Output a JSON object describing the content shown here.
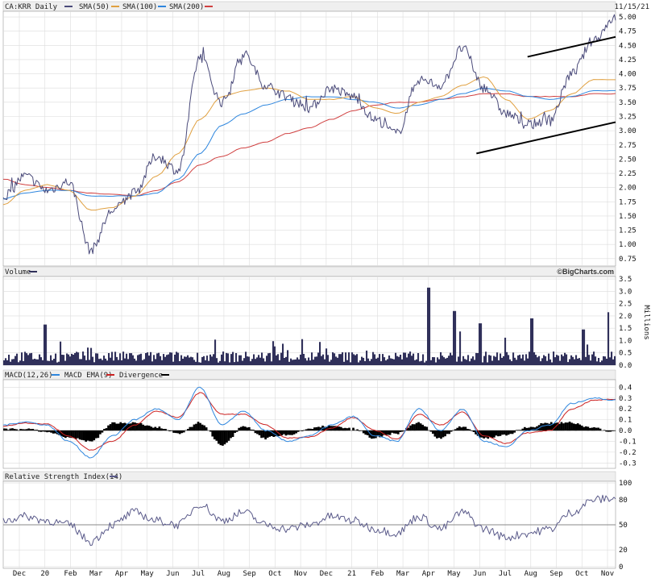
{
  "colors": {
    "price": "#4a4a7a",
    "sma50": "#e0a040",
    "sma100": "#2e86de",
    "sma200": "#d04040",
    "volume": "#30305a",
    "macd": "#2e86de",
    "macd_ema": "#cc2222",
    "divergence": "#000000",
    "rsi": "#5a5a8a",
    "grid": "#dcdcdc",
    "header_bg": "#efefef",
    "trendline": "#000000"
  },
  "header": {
    "ticker_label": "CA:KRR Daily",
    "sma50_label": "SMA(50)",
    "sma100_label": "SMA(100)",
    "sma200_label": "SMA(200)",
    "date": "11/15/21"
  },
  "volume_header": {
    "label": "Volume",
    "brand": "©BigCharts.com",
    "unit": "Millions"
  },
  "macd_header": {
    "macd_label": "MACD(12,26)",
    "ema_label": "MACD EMA(9)",
    "div_label": "Divergence"
  },
  "rsi_header": {
    "label": "Relative Strength Index(14)"
  },
  "x_labels": [
    "Dec",
    "20",
    "Feb",
    "Mar",
    "Apr",
    "May",
    "Jun",
    "Jul",
    "Aug",
    "Sep",
    "Oct",
    "Nov",
    "Dec",
    "21",
    "Feb",
    "Mar",
    "Apr",
    "May",
    "Jun",
    "Jul",
    "Aug",
    "Sep",
    "Oct",
    "Nov"
  ],
  "chart_data": [
    {
      "type": "line",
      "title": "CA:KRR Daily",
      "y_ticks": [
        0.75,
        1.0,
        1.25,
        1.5,
        1.75,
        2.0,
        2.25,
        2.5,
        2.75,
        3.0,
        3.25,
        3.5,
        3.75,
        4.0,
        4.25,
        4.5,
        4.75,
        5.0
      ],
      "ylim": [
        0.75,
        5.0
      ],
      "series": [
        {
          "name": "CA:KRR Daily",
          "x": [
            "Dec",
            "20",
            "Feb",
            "Mar",
            "Mar",
            "Apr",
            "May",
            "Jun",
            "Jul",
            "Aug",
            "Aug",
            "Sep",
            "Sep",
            "Oct",
            "Nov",
            "Dec",
            "21",
            "Feb",
            "Mar",
            "Apr",
            "May",
            "Jun",
            "Jul",
            "Aug",
            "Sep",
            "Oct",
            "Oct",
            "Nov",
            "Nov"
          ],
          "values": [
            1.85,
            2.2,
            1.95,
            2.1,
            0.9,
            1.6,
            1.9,
            2.55,
            2.3,
            4.3,
            3.5,
            4.35,
            3.8,
            3.6,
            3.4,
            3.75,
            3.6,
            3.2,
            2.95,
            3.9,
            3.8,
            4.45,
            3.75,
            3.3,
            3.1,
            3.2,
            4.0,
            4.6,
            5.0
          ]
        },
        {
          "name": "SMA(50)",
          "values": [
            1.7,
            1.95,
            2.05,
            1.95,
            1.6,
            1.65,
            1.85,
            2.2,
            2.6,
            3.2,
            3.6,
            3.7,
            3.75,
            3.7,
            3.55,
            3.55,
            3.6,
            3.4,
            3.3,
            3.5,
            3.6,
            3.8,
            3.95,
            3.55,
            3.2,
            3.35,
            3.65,
            3.9,
            3.9
          ]
        },
        {
          "name": "SMA(100)",
          "values": [
            1.8,
            1.9,
            1.95,
            1.95,
            1.85,
            1.85,
            1.85,
            1.9,
            2.15,
            2.6,
            3.1,
            3.3,
            3.45,
            3.55,
            3.6,
            3.6,
            3.55,
            3.5,
            3.4,
            3.45,
            3.55,
            3.65,
            3.75,
            3.7,
            3.6,
            3.55,
            3.6,
            3.7,
            3.7
          ]
        },
        {
          "name": "SMA(200)",
          "values": [
            2.15,
            2.05,
            2.0,
            1.95,
            1.9,
            1.88,
            1.85,
            1.95,
            2.1,
            2.4,
            2.55,
            2.7,
            2.8,
            2.95,
            3.05,
            3.2,
            3.35,
            3.45,
            3.5,
            3.5,
            3.55,
            3.6,
            3.65,
            3.65,
            3.6,
            3.6,
            3.6,
            3.65,
            3.65
          ]
        }
      ],
      "trendlines": [
        {
          "from": {
            "x": "Aug",
            "y": 4.3
          },
          "to": {
            "x": "Nov",
            "y": 4.65
          }
        },
        {
          "from": {
            "x": "Jun",
            "y": 2.6
          },
          "to": {
            "x": "Nov",
            "y": 3.15
          }
        }
      ]
    },
    {
      "type": "bar",
      "title": "Volume",
      "ylabel": "Millions",
      "y_ticks": [
        0,
        0.5,
        1.0,
        1.5,
        2.0,
        2.5,
        3.0,
        3.5
      ],
      "ylim": [
        0,
        3.5
      ],
      "peaks": [
        {
          "x": "20",
          "value": 1.65
        },
        {
          "x": "Apr",
          "value": 3.15
        },
        {
          "x": "Jun",
          "value": 1.7
        },
        {
          "x": "Aug",
          "value": 1.9
        },
        {
          "x": "Oct",
          "value": 1.45
        },
        {
          "x": "May",
          "value": 2.2
        },
        {
          "x": "Jun",
          "value": 1.5
        },
        {
          "x": "Nov",
          "value": 2.15
        }
      ],
      "baseline": 0.35
    },
    {
      "type": "line",
      "title": "MACD(12,26)",
      "y_ticks": [
        -0.3,
        -0.2,
        -0.1,
        0.0,
        0.1,
        0.2,
        0.3,
        0.4
      ],
      "ylim": [
        -0.3,
        0.45
      ],
      "series": [
        {
          "name": "MACD(12,26)",
          "values": [
            0.05,
            0.08,
            0.05,
            -0.1,
            -0.25,
            -0.05,
            0.1,
            0.2,
            0.1,
            0.4,
            0.05,
            0.18,
            0.0,
            -0.1,
            -0.05,
            0.05,
            0.13,
            -0.05,
            -0.1,
            0.2,
            0.0,
            0.2,
            -0.1,
            -0.15,
            0.0,
            0.05,
            0.25,
            0.3,
            0.28
          ]
        },
        {
          "name": "MACD EMA(9)",
          "values": [
            0.04,
            0.07,
            0.06,
            -0.05,
            -0.18,
            -0.1,
            0.05,
            0.18,
            0.12,
            0.35,
            0.15,
            0.15,
            0.05,
            -0.07,
            -0.06,
            0.02,
            0.12,
            0.0,
            -0.08,
            0.15,
            0.05,
            0.17,
            -0.05,
            -0.12,
            -0.02,
            0.0,
            0.2,
            0.28,
            0.29
          ]
        }
      ]
    },
    {
      "type": "line",
      "title": "Relative Strength Index(14)",
      "y_ticks": [
        0,
        20,
        50,
        80,
        100
      ],
      "ylim": [
        0,
        100
      ],
      "series": [
        {
          "name": "Relative Strength Index(14)",
          "values": [
            55,
            60,
            55,
            50,
            30,
            50,
            65,
            55,
            50,
            75,
            55,
            65,
            50,
            45,
            50,
            60,
            55,
            45,
            40,
            60,
            45,
            65,
            45,
            35,
            40,
            45,
            65,
            80,
            82
          ]
        }
      ]
    }
  ]
}
